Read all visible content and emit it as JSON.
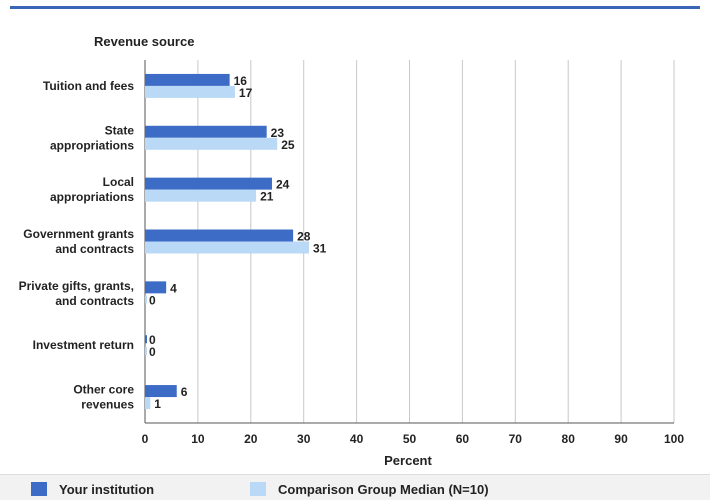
{
  "chart_data": {
    "type": "bar",
    "orientation": "horizontal",
    "title": "Revenue source",
    "xlabel": "Percent",
    "ylabel": "",
    "xlim": [
      0,
      100
    ],
    "xticks": [
      0,
      10,
      20,
      30,
      40,
      50,
      60,
      70,
      80,
      90,
      100
    ],
    "grid": "vertical",
    "categories": [
      [
        "Tuition and fees"
      ],
      [
        "State",
        "appropriations"
      ],
      [
        "Local",
        "appropriations"
      ],
      [
        "Government grants",
        "and contracts"
      ],
      [
        "Private gifts, grants,",
        "and contracts"
      ],
      [
        "Investment return"
      ],
      [
        "Other core",
        "revenues"
      ]
    ],
    "series": [
      {
        "name": "Your institution",
        "color": "#3d6cc6",
        "values": [
          16,
          23,
          24,
          28,
          4,
          0,
          6
        ]
      },
      {
        "name": "Comparison Group Median (N=10)",
        "color": "#b9d9f6",
        "values": [
          17,
          25,
          21,
          31,
          0,
          0,
          1
        ]
      }
    ],
    "legend_position": "bottom"
  }
}
